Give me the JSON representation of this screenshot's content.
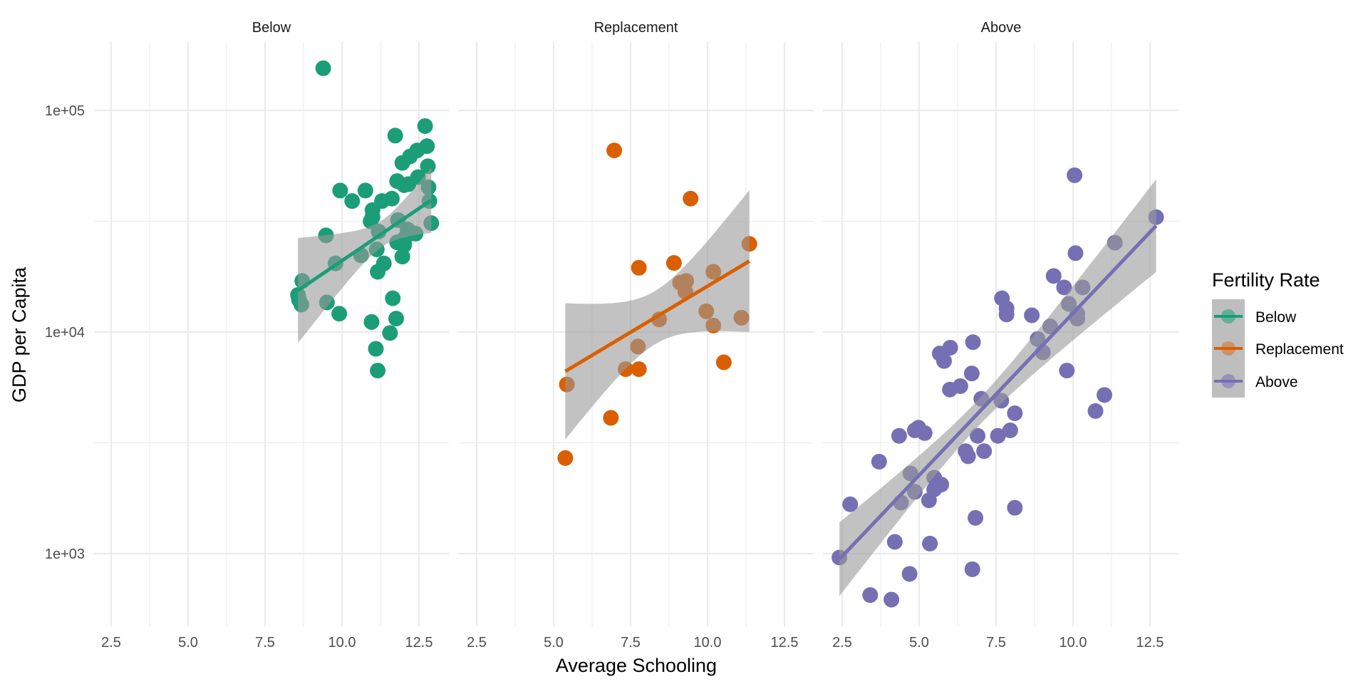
{
  "chart_data": {
    "type": "scatter",
    "title": "",
    "xlabel": "Average Schooling",
    "ylabel": "GDP per Capita",
    "yscale": "log10",
    "ylim": [
      470,
      204000
    ],
    "xlim": [
      1.94,
      13.47
    ],
    "x_ticks": [
      "2.5",
      "5.0",
      "7.5",
      "10.0",
      "12.5"
    ],
    "x_tick_values": [
      2.5,
      5.0,
      7.5,
      10.0,
      12.5
    ],
    "y_ticks": [
      "1e+03",
      "1e+04",
      "1e+05"
    ],
    "y_tick_values": [
      1000,
      10000,
      100000
    ],
    "grid": true,
    "legend": {
      "title": "Fertility Rate",
      "position": "right",
      "entries": [
        "Below",
        "Replacement",
        "Above"
      ]
    },
    "facets": [
      {
        "name": "Below",
        "color": "#1B9E77",
        "points": [
          [
            9.39,
            155000
          ],
          [
            12.7,
            85000
          ],
          [
            11.73,
            77000
          ],
          [
            12.76,
            69000
          ],
          [
            12.44,
            66000
          ],
          [
            12.21,
            62000
          ],
          [
            11.96,
            58000
          ],
          [
            12.79,
            56000
          ],
          [
            12.47,
            50000
          ],
          [
            11.79,
            48000
          ],
          [
            12.16,
            46500
          ],
          [
            12.02,
            46000
          ],
          [
            12.81,
            45000
          ],
          [
            9.94,
            43500
          ],
          [
            10.76,
            43500
          ],
          [
            10.33,
            39000
          ],
          [
            11.3,
            39000
          ],
          [
            11.62,
            40000
          ],
          [
            10.99,
            35500
          ],
          [
            10.99,
            33000
          ],
          [
            11.82,
            32000
          ],
          [
            12.84,
            39000
          ],
          [
            10.93,
            31600
          ],
          [
            12.13,
            29000
          ],
          [
            11.19,
            28400
          ],
          [
            12.39,
            27800
          ],
          [
            12.9,
            31000
          ],
          [
            9.48,
            27300
          ],
          [
            12.04,
            26500
          ],
          [
            11.79,
            25400
          ],
          [
            12.02,
            24700
          ],
          [
            11.13,
            23600
          ],
          [
            11.96,
            21900
          ],
          [
            10.62,
            22200
          ],
          [
            9.79,
            20400
          ],
          [
            11.36,
            20400
          ],
          [
            11.16,
            18700
          ],
          [
            8.71,
            17000
          ],
          [
            11.65,
            14200
          ],
          [
            8.57,
            14700
          ],
          [
            8.6,
            14000
          ],
          [
            8.68,
            13300
          ],
          [
            9.51,
            13600
          ],
          [
            11.76,
            11500
          ],
          [
            9.91,
            12100
          ],
          [
            10.96,
            11100
          ],
          [
            11.56,
            9900
          ],
          [
            11.1,
            8400
          ],
          [
            11.16,
            6700
          ]
        ],
        "fit": {
          "method": "lm (log10 y)",
          "x_range": [
            8.57,
            12.9
          ],
          "intercept": 3.381,
          "slope": 0.0941,
          "x_mean": 11.3,
          "ci_min_halfwidth": 0.06,
          "ci_spread": 0.084
        }
      },
      {
        "name": "Replacement",
        "color": "#D95F02",
        "points": [
          [
            6.97,
            66000
          ],
          [
            9.45,
            40000
          ],
          [
            11.36,
            25000
          ],
          [
            7.77,
            19500
          ],
          [
            8.91,
            20500
          ],
          [
            10.19,
            18700
          ],
          [
            9.11,
            16700
          ],
          [
            9.31,
            17000
          ],
          [
            9.28,
            15200
          ],
          [
            8.43,
            11400
          ],
          [
            9.96,
            12400
          ],
          [
            11.1,
            11600
          ],
          [
            10.19,
            10700
          ],
          [
            7.74,
            8600
          ],
          [
            10.53,
            7300
          ],
          [
            7.34,
            6800
          ],
          [
            7.77,
            6800
          ],
          [
            5.43,
            5800
          ],
          [
            6.86,
            4100
          ],
          [
            5.38,
            2700
          ]
        ],
        "fit": {
          "method": "lm (log10 y)",
          "x_range": [
            5.38,
            11.36
          ],
          "intercept": 3.375,
          "slope": 0.0832,
          "x_mean": 8.3,
          "ci_min_halfwidth": 0.12,
          "ci_spread": 0.097
        }
      },
      {
        "name": "Above",
        "color": "#7570B3",
        "points": [
          [
            10.05,
            51000
          ],
          [
            12.7,
            33000
          ],
          [
            11.36,
            25300
          ],
          [
            10.08,
            22700
          ],
          [
            9.37,
            17900
          ],
          [
            9.71,
            15900
          ],
          [
            10.31,
            15900
          ],
          [
            7.69,
            14200
          ],
          [
            7.84,
            12800
          ],
          [
            7.84,
            12000
          ],
          [
            8.66,
            11900
          ],
          [
            9.86,
            13400
          ],
          [
            10.14,
            12100
          ],
          [
            10.14,
            11500
          ],
          [
            9.26,
            10600
          ],
          [
            6.75,
            9000
          ],
          [
            8.85,
            9300
          ],
          [
            9.02,
            8100
          ],
          [
            6.01,
            8500
          ],
          [
            5.67,
            8000
          ],
          [
            5.81,
            7400
          ],
          [
            9.8,
            6700
          ],
          [
            6.71,
            6500
          ],
          [
            6.34,
            5700
          ],
          [
            6.0,
            5500
          ],
          [
            7.02,
            5000
          ],
          [
            7.67,
            4900
          ],
          [
            11.02,
            5200
          ],
          [
            10.73,
            4400
          ],
          [
            8.11,
            4300
          ],
          [
            4.98,
            3700
          ],
          [
            4.86,
            3600
          ],
          [
            4.35,
            3400
          ],
          [
            5.18,
            3500
          ],
          [
            7.96,
            3600
          ],
          [
            6.9,
            3400
          ],
          [
            7.56,
            3400
          ],
          [
            6.51,
            2900
          ],
          [
            6.59,
            2750
          ],
          [
            7.11,
            2900
          ],
          [
            3.7,
            2600
          ],
          [
            4.72,
            2300
          ],
          [
            5.49,
            2200
          ],
          [
            5.72,
            2050
          ],
          [
            5.49,
            1950
          ],
          [
            4.86,
            1900
          ],
          [
            5.32,
            1740
          ],
          [
            4.41,
            1700
          ],
          [
            2.76,
            1670
          ],
          [
            8.11,
            1610
          ],
          [
            6.83,
            1450
          ],
          [
            4.21,
            1130
          ],
          [
            5.35,
            1110
          ],
          [
            2.41,
            960
          ],
          [
            4.69,
            810
          ],
          [
            6.73,
            850
          ],
          [
            3.41,
            650
          ],
          [
            4.1,
            620
          ]
        ],
        "fit": {
          "method": "lm (log10 y)",
          "x_range": [
            2.41,
            12.7
          ],
          "intercept": 2.622,
          "slope": 0.1463,
          "x_mean": 6.9,
          "ci_min_halfwidth": 0.06,
          "ci_spread": 0.0345
        }
      }
    ],
    "ribbon_color": "#999999"
  }
}
